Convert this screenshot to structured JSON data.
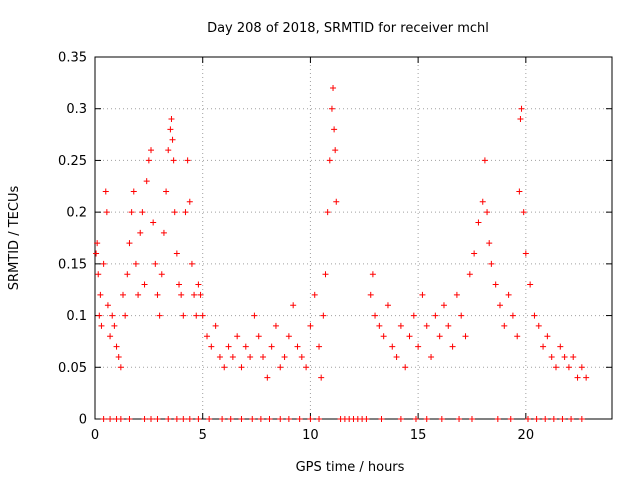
{
  "chart_data": {
    "type": "scatter",
    "title": "Day 208 of 2018, SRMTID for receiver mchl",
    "xlabel": "GPS time / hours",
    "ylabel": "SRMTID / TECUs",
    "xlim": [
      0,
      24
    ],
    "ylim": [
      0,
      0.35
    ],
    "grid": true,
    "marker": "+",
    "colors": {
      "points": "#ff0000",
      "axis": "#000000",
      "grid": "#a0a0a0"
    },
    "xticks": [
      {
        "value": 0,
        "label": "0"
      },
      {
        "value": 5,
        "label": "5"
      },
      {
        "value": 10,
        "label": "10"
      },
      {
        "value": 15,
        "label": "15"
      },
      {
        "value": 20,
        "label": "20"
      }
    ],
    "yticks": [
      {
        "value": 0,
        "label": "0"
      },
      {
        "value": 0.05,
        "label": "0.05"
      },
      {
        "value": 0.1,
        "label": "0.1"
      },
      {
        "value": 0.15,
        "label": "0.15"
      },
      {
        "value": 0.2,
        "label": "0.2"
      },
      {
        "value": 0.25,
        "label": "0.25"
      },
      {
        "value": 0.3,
        "label": "0.3"
      },
      {
        "value": 0.35,
        "label": "0.35"
      }
    ],
    "series": [
      {
        "name": "SRMTID",
        "x": [
          0.05,
          0.1,
          0.15,
          0.2,
          0.25,
          0.3,
          0.4,
          0.5,
          0.55,
          0.6,
          0.7,
          0.8,
          0.9,
          1.0,
          1.1,
          1.2,
          1.3,
          1.4,
          1.5,
          1.6,
          1.7,
          1.8,
          1.9,
          2.0,
          2.1,
          2.2,
          2.3,
          2.4,
          2.5,
          2.6,
          2.7,
          2.8,
          2.9,
          3.0,
          3.1,
          3.2,
          3.3,
          3.4,
          3.5,
          3.55,
          3.6,
          3.65,
          3.7,
          3.8,
          3.9,
          4.0,
          4.1,
          4.2,
          4.3,
          4.4,
          4.5,
          4.6,
          4.7,
          4.8,
          4.9,
          5.0,
          5.2,
          5.4,
          5.6,
          5.8,
          6.0,
          6.2,
          6.4,
          6.6,
          6.8,
          7.0,
          7.2,
          7.4,
          7.6,
          7.8,
          8.0,
          8.2,
          8.4,
          8.6,
          8.8,
          9.0,
          9.2,
          9.4,
          9.6,
          9.8,
          10.0,
          10.2,
          10.4,
          10.5,
          10.6,
          10.7,
          10.8,
          10.9,
          11.0,
          11.05,
          11.1,
          11.15,
          11.2,
          12.8,
          12.9,
          13.0,
          13.2,
          13.4,
          13.6,
          13.8,
          14.0,
          14.2,
          14.4,
          14.6,
          14.8,
          15.0,
          15.2,
          15.4,
          15.6,
          15.8,
          16.0,
          16.2,
          16.4,
          16.6,
          16.8,
          17.0,
          17.2,
          17.4,
          17.6,
          17.8,
          18.0,
          18.1,
          18.2,
          18.3,
          18.4,
          18.6,
          18.8,
          19.0,
          19.2,
          19.4,
          19.6,
          19.7,
          19.75,
          19.8,
          19.9,
          20.0,
          20.2,
          20.4,
          20.6,
          20.8,
          21.0,
          21.2,
          21.4,
          21.6,
          21.8,
          22.0,
          22.2,
          22.4,
          22.6,
          22.8
        ],
        "y": [
          0.16,
          0.17,
          0.14,
          0.1,
          0.12,
          0.09,
          0.15,
          0.22,
          0.2,
          0.11,
          0.08,
          0.1,
          0.09,
          0.07,
          0.06,
          0.05,
          0.12,
          0.1,
          0.14,
          0.17,
          0.2,
          0.22,
          0.15,
          0.12,
          0.18,
          0.2,
          0.13,
          0.23,
          0.25,
          0.26,
          0.19,
          0.15,
          0.12,
          0.1,
          0.14,
          0.18,
          0.22,
          0.26,
          0.28,
          0.29,
          0.27,
          0.25,
          0.2,
          0.16,
          0.13,
          0.12,
          0.1,
          0.2,
          0.25,
          0.21,
          0.15,
          0.12,
          0.1,
          0.13,
          0.12,
          0.1,
          0.08,
          0.07,
          0.09,
          0.06,
          0.05,
          0.07,
          0.06,
          0.08,
          0.05,
          0.07,
          0.06,
          0.1,
          0.08,
          0.06,
          0.04,
          0.07,
          0.09,
          0.05,
          0.06,
          0.08,
          0.11,
          0.07,
          0.06,
          0.05,
          0.09,
          0.12,
          0.07,
          0.04,
          0.1,
          0.14,
          0.2,
          0.25,
          0.3,
          0.32,
          0.28,
          0.26,
          0.21,
          0.12,
          0.14,
          0.1,
          0.09,
          0.08,
          0.11,
          0.07,
          0.06,
          0.09,
          0.05,
          0.08,
          0.1,
          0.07,
          0.12,
          0.09,
          0.06,
          0.1,
          0.08,
          0.11,
          0.09,
          0.07,
          0.12,
          0.1,
          0.08,
          0.14,
          0.16,
          0.19,
          0.21,
          0.25,
          0.2,
          0.17,
          0.15,
          0.13,
          0.11,
          0.09,
          0.12,
          0.1,
          0.08,
          0.22,
          0.29,
          0.3,
          0.2,
          0.16,
          0.13,
          0.1,
          0.09,
          0.07,
          0.08,
          0.06,
          0.05,
          0.07,
          0.06,
          0.05,
          0.06,
          0.04,
          0.05,
          0.04
        ],
        "zero_hours": [
          0.4,
          0.7,
          1.0,
          1.2,
          1.6,
          2.3,
          2.6,
          2.9,
          3.4,
          3.8,
          4.1,
          4.4,
          4.8,
          5.3,
          5.9,
          6.3,
          6.8,
          7.3,
          7.7,
          8.1,
          8.6,
          9.0,
          9.5,
          10.0,
          10.4,
          11.4,
          11.6,
          11.8,
          12.0,
          12.2,
          12.4,
          12.6,
          13.3,
          14.2,
          14.9,
          15.4,
          16.1,
          16.9,
          17.5,
          18.7,
          19.3,
          20.1,
          20.5,
          20.9,
          21.3,
          21.7,
          22.1,
          22.6
        ]
      }
    ]
  }
}
